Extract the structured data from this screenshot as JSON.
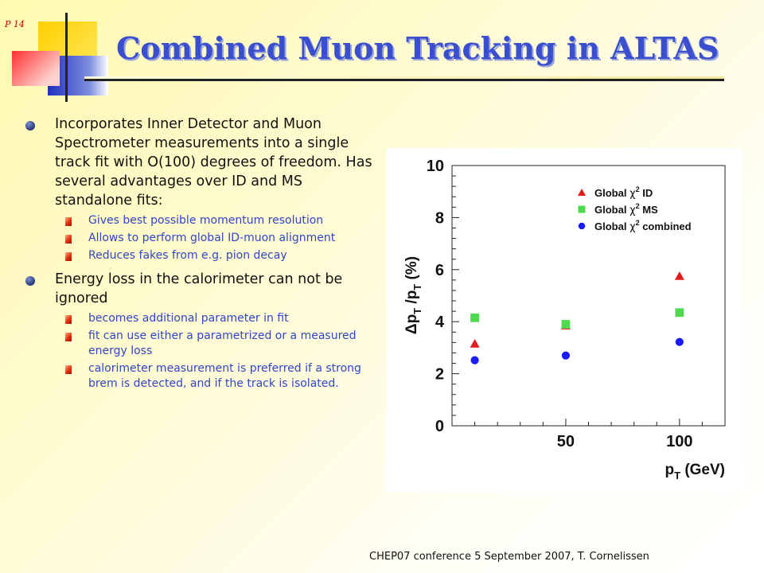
{
  "slide": {
    "page_number": "P 14",
    "title": "Combined Muon Tracking in ALTAS",
    "footer": "CHEP07 conference 5 September 2007, T. Cornelissen"
  },
  "content": {
    "bullets": [
      {
        "text": "Incorporates Inner Detector and Muon Spectrometer measurements into a single track fit with O(100) degrees of freedom. Has several advantages over ID and MS standalone fits:",
        "subs": [
          "Gives best possible momentum resolution",
          "Allows to perform global ID-muon alignment",
          "Reduces fakes from e.g. pion decay"
        ]
      },
      {
        "text": "Energy loss in the calorimeter can not be ignored",
        "subs": [
          "becomes additional parameter in fit",
          "fit can use either a parametrized or a measured energy loss",
          "calorimeter measurement is preferred if a strong brem is detected, and if the track is isolated."
        ]
      }
    ]
  },
  "colors": {
    "title": "#3a4fd0",
    "sub_text": "#3046c8",
    "id_series": "#e41a1c",
    "ms_series": "#4ddb4d",
    "combined_series": "#1a1aff"
  },
  "chart_data": {
    "type": "scatter",
    "title": "",
    "xlabel_main": "p",
    "xlabel_sub": "T",
    "xlabel_unit": " (GeV)",
    "ylabel_delta": "Δ",
    "ylabel_p1": "p",
    "ylabel_sub1": "T",
    "ylabel_slash": " /p",
    "ylabel_sub2": "T",
    "ylabel_unit": " (%)",
    "x_ticks": [
      50,
      100
    ],
    "y_ticks": [
      0,
      2,
      4,
      6,
      8,
      10
    ],
    "xlim": [
      0,
      120
    ],
    "ylim": [
      0,
      10
    ],
    "grid": false,
    "legend_position": "top-right",
    "series": [
      {
        "name": "Global χ² ID",
        "label_pre": "Global ",
        "label_chi": "χ",
        "label_sup": "2",
        "label_post": " ID",
        "marker": "triangle",
        "color": "#e41a1c",
        "x": [
          10,
          50,
          100
        ],
        "y": [
          3.15,
          3.85,
          5.75
        ]
      },
      {
        "name": "Global χ² MS",
        "label_pre": "Global ",
        "label_chi": "χ",
        "label_sup": "2",
        "label_post": " MS",
        "marker": "square",
        "color": "#4ddb4d",
        "x": [
          10,
          50,
          100
        ],
        "y": [
          4.15,
          3.9,
          4.35
        ]
      },
      {
        "name": "Global χ² combined",
        "label_pre": "Global ",
        "label_chi": "χ",
        "label_sup": "2",
        "label_post": " combined",
        "marker": "circle",
        "color": "#1a1aff",
        "x": [
          10,
          50,
          100
        ],
        "y": [
          2.52,
          2.7,
          3.22
        ]
      }
    ]
  }
}
